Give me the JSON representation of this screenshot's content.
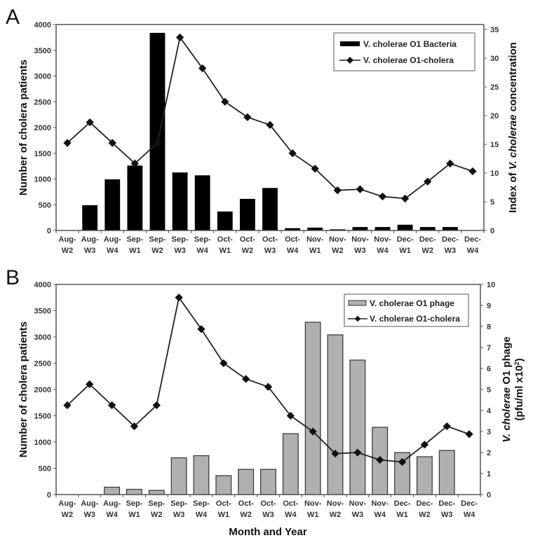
{
  "chart_data": [
    {
      "type": "bar",
      "panel_label": "A",
      "categories": [
        "Aug-W2",
        "Aug-W3",
        "Aug-W4",
        "Sep-W1",
        "Sep-W2",
        "Sep-W3",
        "Sep-W4",
        "Oct-W1",
        "Oct-W2",
        "Oct-W3",
        "Oct-W4",
        "Nov-W1",
        "Nov-W2",
        "Nov-W3",
        "Nov-W4",
        "Dec-W1",
        "Dec-W2",
        "Dec-W3",
        "Dec-W4"
      ],
      "category_lines": [
        [
          "Aug-",
          "W2"
        ],
        [
          "Aug-",
          "W3"
        ],
        [
          "Aug-",
          "W4"
        ],
        [
          "Sep-",
          "W1"
        ],
        [
          "Sep-",
          "W2"
        ],
        [
          "Sep-",
          "W3"
        ],
        [
          "Sep-",
          "W4"
        ],
        [
          "Oct-",
          "W1"
        ],
        [
          "Oct-",
          "W2"
        ],
        [
          "Oct-",
          "W3"
        ],
        [
          "Oct-",
          "W4"
        ],
        [
          "Nov-",
          "W1"
        ],
        [
          "Nov-",
          "W2"
        ],
        [
          "Nov-",
          "W3"
        ],
        [
          "Nov-",
          "W4"
        ],
        [
          "Dec-",
          "W1"
        ],
        [
          "Dec-",
          "W2"
        ],
        [
          "Dec-",
          "W3"
        ],
        [
          "Dec-",
          "W4"
        ]
      ],
      "ylabel": "Number of cholera patients",
      "ylabel_right_parts": [
        "Index of ",
        "V. cholerae",
        " concentration"
      ],
      "ylim": [
        0,
        4000
      ],
      "yticks": [
        0,
        500,
        1000,
        1500,
        2000,
        2500,
        3000,
        3500,
        4000
      ],
      "ylim_right": [
        0,
        35
      ],
      "yticks_right": [
        0,
        5,
        10,
        15,
        20,
        25,
        30,
        35
      ],
      "legend_position": "top-right",
      "series": [
        {
          "name": "V. cholerae O1 Bacteria",
          "type": "bar",
          "axis": "right",
          "color": "#000000",
          "values": [
            0,
            4.4,
            8.9,
            11.3,
            34.4,
            10.1,
            9.6,
            3.3,
            5.5,
            7.4,
            0.4,
            0.5,
            0.2,
            0.6,
            0.6,
            1.0,
            0.6,
            0.6,
            0
          ]
        },
        {
          "name": "V. cholerae O1-cholera",
          "type": "line",
          "axis": "left",
          "color": "#222222",
          "values": [
            1700,
            2100,
            1700,
            1300,
            1700,
            3750,
            3150,
            2500,
            2200,
            2050,
            1500,
            1200,
            780,
            800,
            660,
            620,
            950,
            1300,
            1150
          ]
        }
      ]
    },
    {
      "type": "bar",
      "panel_label": "B",
      "categories": [
        "Aug-W2",
        "Aug-W3",
        "Aug-W4",
        "Sep-W1",
        "Sep-W2",
        "Sep-W3",
        "Sep-W4",
        "Oct-W1",
        "Oct-W2",
        "Oct-W3",
        "Oct-W4",
        "Nov-W1",
        "Nov-W2",
        "Nov-W3",
        "Nov-W4",
        "Dec-W1",
        "Dec-W2",
        "Dec-W3",
        "Dec-W4"
      ],
      "category_lines": [
        [
          "Aug-",
          "W2"
        ],
        [
          "Aug-",
          "W3"
        ],
        [
          "Aug-",
          "W4"
        ],
        [
          "Sep-",
          "W1"
        ],
        [
          "Sep-",
          "W2"
        ],
        [
          "Sep-",
          "W3"
        ],
        [
          "Sep-",
          "W4"
        ],
        [
          "Oct-",
          "W1"
        ],
        [
          "Oct-",
          "W2"
        ],
        [
          "Oct-",
          "W3"
        ],
        [
          "Oct-",
          "W4"
        ],
        [
          "Nov-",
          "W1"
        ],
        [
          "Nov-",
          "W2"
        ],
        [
          "Nov-",
          "W3"
        ],
        [
          "Nov-",
          "W4"
        ],
        [
          "Dec-",
          "W1"
        ],
        [
          "Dec-",
          "W2"
        ],
        [
          "Dec-",
          "W3"
        ],
        [
          "Dec-",
          "W4"
        ]
      ],
      "xlabel": "Month and Year",
      "ylabel": "Number of cholera patients",
      "ylabel_right_line1_parts": [
        "V. cholerae",
        " O1  phage"
      ],
      "ylabel_right_line2": "(pfu/ml x10",
      "ylabel_right_sup": "2",
      "ylabel_right_close": ")",
      "ylim": [
        0,
        4000
      ],
      "yticks": [
        0,
        500,
        1000,
        1500,
        2000,
        2500,
        3000,
        3500,
        4000
      ],
      "ylim_right": [
        0,
        10
      ],
      "yticks_right": [
        0,
        1,
        2,
        3,
        4,
        5,
        6,
        7,
        8,
        9,
        10
      ],
      "legend_position": "top-right",
      "series": [
        {
          "name": "V. cholerae O1 phage",
          "type": "bar",
          "axis": "right",
          "color": "#b0b0b0",
          "values": [
            0,
            0,
            0.35,
            0.25,
            0.2,
            1.75,
            1.85,
            0.9,
            1.2,
            1.2,
            2.9,
            8.2,
            7.6,
            6.4,
            3.2,
            2.0,
            1.8,
            2.1,
            0
          ]
        },
        {
          "name": "V. cholerae O1-cholera",
          "type": "line",
          "axis": "left",
          "color": "#222222",
          "values": [
            1700,
            2100,
            1700,
            1300,
            1700,
            3750,
            3150,
            2500,
            2200,
            2050,
            1500,
            1200,
            780,
            800,
            660,
            620,
            950,
            1300,
            1150
          ]
        }
      ]
    }
  ]
}
